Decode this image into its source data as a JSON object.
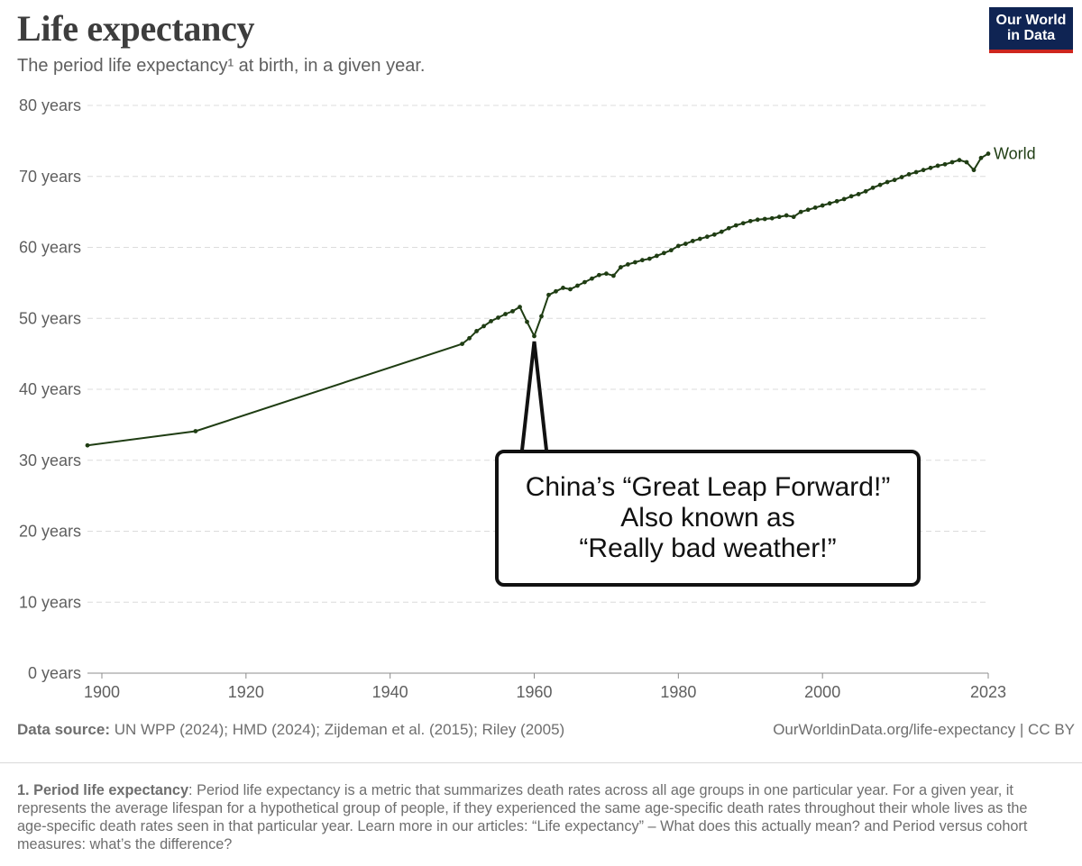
{
  "header": {
    "title": "Life expectancy",
    "subtitle": "The period life expectancy¹ at birth, in a given year.",
    "logo_line1": "Our World",
    "logo_line2": "in Data"
  },
  "chart_data": {
    "type": "line",
    "ylim": [
      0,
      80
    ],
    "xlim": [
      1898,
      2023
    ],
    "y_ticks": [
      "0 years",
      "10 years",
      "20 years",
      "30 years",
      "40 years",
      "50 years",
      "60 years",
      "70 years",
      "80 years"
    ],
    "x_ticks": [
      "1900",
      "1920",
      "1940",
      "1960",
      "1980",
      "2000",
      "2023"
    ],
    "grid": "horizontal dashed",
    "line_color": "#1f3d13",
    "series": [
      {
        "name": "World",
        "points": [
          [
            1898,
            32.1
          ],
          [
            1913,
            34.1
          ],
          [
            1950,
            46.4
          ],
          [
            1951,
            47.2
          ],
          [
            1952,
            48.2
          ],
          [
            1953,
            48.9
          ],
          [
            1954,
            49.6
          ],
          [
            1955,
            50.1
          ],
          [
            1956,
            50.6
          ],
          [
            1957,
            51.0
          ],
          [
            1958,
            51.6
          ],
          [
            1959,
            49.5
          ],
          [
            1960,
            47.5
          ],
          [
            1961,
            50.3
          ],
          [
            1962,
            53.3
          ],
          [
            1963,
            53.8
          ],
          [
            1964,
            54.3
          ],
          [
            1965,
            54.1
          ],
          [
            1966,
            54.6
          ],
          [
            1967,
            55.1
          ],
          [
            1968,
            55.6
          ],
          [
            1969,
            56.1
          ],
          [
            1970,
            56.3
          ],
          [
            1971,
            56.0
          ],
          [
            1972,
            57.2
          ],
          [
            1973,
            57.6
          ],
          [
            1974,
            57.9
          ],
          [
            1975,
            58.2
          ],
          [
            1976,
            58.4
          ],
          [
            1977,
            58.8
          ],
          [
            1978,
            59.2
          ],
          [
            1979,
            59.6
          ],
          [
            1980,
            60.2
          ],
          [
            1981,
            60.5
          ],
          [
            1982,
            60.9
          ],
          [
            1983,
            61.2
          ],
          [
            1984,
            61.5
          ],
          [
            1985,
            61.8
          ],
          [
            1986,
            62.2
          ],
          [
            1987,
            62.7
          ],
          [
            1988,
            63.1
          ],
          [
            1989,
            63.4
          ],
          [
            1990,
            63.7
          ],
          [
            1991,
            63.9
          ],
          [
            1992,
            64.0
          ],
          [
            1993,
            64.1
          ],
          [
            1994,
            64.3
          ],
          [
            1995,
            64.5
          ],
          [
            1996,
            64.3
          ],
          [
            1997,
            65.0
          ],
          [
            1998,
            65.3
          ],
          [
            1999,
            65.6
          ],
          [
            2000,
            65.9
          ],
          [
            2001,
            66.2
          ],
          [
            2002,
            66.5
          ],
          [
            2003,
            66.8
          ],
          [
            2004,
            67.2
          ],
          [
            2005,
            67.5
          ],
          [
            2006,
            67.9
          ],
          [
            2007,
            68.4
          ],
          [
            2008,
            68.8
          ],
          [
            2009,
            69.2
          ],
          [
            2010,
            69.5
          ],
          [
            2011,
            69.9
          ],
          [
            2012,
            70.3
          ],
          [
            2013,
            70.6
          ],
          [
            2014,
            70.9
          ],
          [
            2015,
            71.2
          ],
          [
            2016,
            71.5
          ],
          [
            2017,
            71.7
          ],
          [
            2018,
            72.0
          ],
          [
            2019,
            72.3
          ],
          [
            2020,
            72.0
          ],
          [
            2021,
            70.9
          ],
          [
            2022,
            72.6
          ],
          [
            2023,
            73.2
          ]
        ]
      }
    ],
    "annotation": {
      "lines": [
        "China’s “Great Leap Forward!”",
        "Also known as",
        "“Really bad weather!”"
      ],
      "points_to": [
        1960,
        47.5
      ]
    }
  },
  "footer": {
    "source_label": "Data source:",
    "source_text": " UN WPP (2024); HMD (2024); Zijdeman et al. (2015); Riley (2005)",
    "credit": "OurWorldinData.org/life-expectancy | CC BY",
    "note_label": "1. Period life expectancy",
    "note_text": ": Period life expectancy is a metric that summarizes death rates across all age groups in one particular year. For a given year, it represents the average lifespan for a hypothetical group of people, if they experienced the same age-specific death rates throughout their whole lives as the age-specific death rates seen in that particular year. Learn more in our articles: “Life expectancy” – What does this actually mean? and Period versus cohort measures: what’s the difference?"
  }
}
